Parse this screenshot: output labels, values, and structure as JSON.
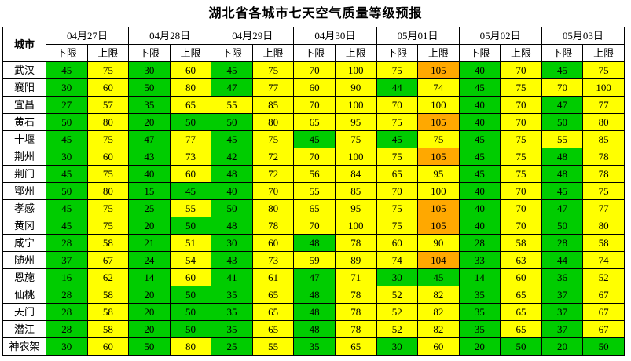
{
  "title": "湖北省各城市七天空气质量等级预报",
  "table": {
    "city_header": "城市",
    "dates": [
      "04月27日",
      "04月28日",
      "04月29日",
      "04月30日",
      "05月01日",
      "05月02日",
      "05月03日"
    ],
    "limit_labels": {
      "lower": "下限",
      "upper": "上限"
    },
    "colors": {
      "green": "#00cc00",
      "yellow": "#ffff00",
      "orange": "#ffa800"
    },
    "rows": [
      {
        "city": "武汉",
        "cells": [
          [
            45,
            "g"
          ],
          [
            75,
            "y"
          ],
          [
            30,
            "g"
          ],
          [
            60,
            "y"
          ],
          [
            45,
            "g"
          ],
          [
            75,
            "y"
          ],
          [
            70,
            "y"
          ],
          [
            100,
            "y"
          ],
          [
            75,
            "y"
          ],
          [
            105,
            "o"
          ],
          [
            40,
            "g"
          ],
          [
            70,
            "y"
          ],
          [
            45,
            "g"
          ],
          [
            75,
            "y"
          ]
        ]
      },
      {
        "city": "襄阳",
        "cells": [
          [
            30,
            "g"
          ],
          [
            60,
            "y"
          ],
          [
            50,
            "g"
          ],
          [
            80,
            "y"
          ],
          [
            47,
            "g"
          ],
          [
            77,
            "y"
          ],
          [
            60,
            "y"
          ],
          [
            90,
            "y"
          ],
          [
            44,
            "g"
          ],
          [
            74,
            "y"
          ],
          [
            45,
            "g"
          ],
          [
            75,
            "y"
          ],
          [
            70,
            "y"
          ],
          [
            100,
            "y"
          ]
        ]
      },
      {
        "city": "宜昌",
        "cells": [
          [
            27,
            "g"
          ],
          [
            57,
            "y"
          ],
          [
            35,
            "g"
          ],
          [
            65,
            "y"
          ],
          [
            55,
            "y"
          ],
          [
            85,
            "y"
          ],
          [
            70,
            "y"
          ],
          [
            100,
            "y"
          ],
          [
            70,
            "y"
          ],
          [
            100,
            "y"
          ],
          [
            40,
            "g"
          ],
          [
            70,
            "y"
          ],
          [
            47,
            "g"
          ],
          [
            77,
            "y"
          ]
        ]
      },
      {
        "city": "黄石",
        "cells": [
          [
            50,
            "g"
          ],
          [
            80,
            "y"
          ],
          [
            20,
            "g"
          ],
          [
            50,
            "g"
          ],
          [
            50,
            "g"
          ],
          [
            80,
            "y"
          ],
          [
            65,
            "y"
          ],
          [
            95,
            "y"
          ],
          [
            75,
            "y"
          ],
          [
            105,
            "o"
          ],
          [
            40,
            "g"
          ],
          [
            70,
            "y"
          ],
          [
            50,
            "g"
          ],
          [
            80,
            "y"
          ]
        ]
      },
      {
        "city": "十堰",
        "cells": [
          [
            45,
            "g"
          ],
          [
            75,
            "y"
          ],
          [
            47,
            "g"
          ],
          [
            77,
            "y"
          ],
          [
            45,
            "g"
          ],
          [
            75,
            "y"
          ],
          [
            45,
            "g"
          ],
          [
            75,
            "y"
          ],
          [
            45,
            "g"
          ],
          [
            75,
            "y"
          ],
          [
            45,
            "g"
          ],
          [
            75,
            "y"
          ],
          [
            55,
            "y"
          ],
          [
            85,
            "y"
          ]
        ]
      },
      {
        "city": "荆州",
        "cells": [
          [
            30,
            "g"
          ],
          [
            60,
            "y"
          ],
          [
            43,
            "g"
          ],
          [
            73,
            "y"
          ],
          [
            42,
            "g"
          ],
          [
            72,
            "y"
          ],
          [
            70,
            "y"
          ],
          [
            100,
            "y"
          ],
          [
            75,
            "y"
          ],
          [
            105,
            "o"
          ],
          [
            45,
            "g"
          ],
          [
            75,
            "y"
          ],
          [
            48,
            "g"
          ],
          [
            78,
            "y"
          ]
        ]
      },
      {
        "city": "荆门",
        "cells": [
          [
            45,
            "g"
          ],
          [
            75,
            "y"
          ],
          [
            40,
            "g"
          ],
          [
            60,
            "y"
          ],
          [
            48,
            "g"
          ],
          [
            72,
            "y"
          ],
          [
            56,
            "y"
          ],
          [
            84,
            "y"
          ],
          [
            65,
            "y"
          ],
          [
            95,
            "y"
          ],
          [
            45,
            "g"
          ],
          [
            75,
            "y"
          ],
          [
            48,
            "g"
          ],
          [
            78,
            "y"
          ]
        ]
      },
      {
        "city": "鄂州",
        "cells": [
          [
            50,
            "g"
          ],
          [
            80,
            "y"
          ],
          [
            15,
            "g"
          ],
          [
            45,
            "g"
          ],
          [
            40,
            "g"
          ],
          [
            70,
            "y"
          ],
          [
            55,
            "y"
          ],
          [
            85,
            "y"
          ],
          [
            70,
            "y"
          ],
          [
            100,
            "y"
          ],
          [
            40,
            "g"
          ],
          [
            70,
            "y"
          ],
          [
            45,
            "g"
          ],
          [
            75,
            "y"
          ]
        ]
      },
      {
        "city": "孝感",
        "cells": [
          [
            45,
            "g"
          ],
          [
            75,
            "y"
          ],
          [
            25,
            "g"
          ],
          [
            55,
            "y"
          ],
          [
            50,
            "g"
          ],
          [
            80,
            "y"
          ],
          [
            65,
            "y"
          ],
          [
            95,
            "y"
          ],
          [
            75,
            "y"
          ],
          [
            105,
            "o"
          ],
          [
            40,
            "g"
          ],
          [
            70,
            "y"
          ],
          [
            47,
            "g"
          ],
          [
            77,
            "y"
          ]
        ]
      },
      {
        "city": "黄冈",
        "cells": [
          [
            45,
            "g"
          ],
          [
            75,
            "y"
          ],
          [
            20,
            "g"
          ],
          [
            50,
            "g"
          ],
          [
            48,
            "g"
          ],
          [
            78,
            "y"
          ],
          [
            70,
            "y"
          ],
          [
            100,
            "y"
          ],
          [
            75,
            "y"
          ],
          [
            105,
            "o"
          ],
          [
            40,
            "g"
          ],
          [
            70,
            "y"
          ],
          [
            50,
            "g"
          ],
          [
            80,
            "y"
          ]
        ]
      },
      {
        "city": "咸宁",
        "cells": [
          [
            28,
            "g"
          ],
          [
            58,
            "y"
          ],
          [
            21,
            "g"
          ],
          [
            51,
            "y"
          ],
          [
            30,
            "g"
          ],
          [
            60,
            "y"
          ],
          [
            48,
            "g"
          ],
          [
            78,
            "y"
          ],
          [
            60,
            "y"
          ],
          [
            90,
            "y"
          ],
          [
            28,
            "g"
          ],
          [
            58,
            "y"
          ],
          [
            28,
            "g"
          ],
          [
            58,
            "y"
          ]
        ]
      },
      {
        "city": "随州",
        "cells": [
          [
            37,
            "g"
          ],
          [
            67,
            "y"
          ],
          [
            24,
            "g"
          ],
          [
            54,
            "y"
          ],
          [
            43,
            "g"
          ],
          [
            73,
            "y"
          ],
          [
            59,
            "y"
          ],
          [
            89,
            "y"
          ],
          [
            74,
            "y"
          ],
          [
            104,
            "o"
          ],
          [
            33,
            "g"
          ],
          [
            63,
            "y"
          ],
          [
            44,
            "g"
          ],
          [
            74,
            "y"
          ]
        ]
      },
      {
        "city": "恩施",
        "cells": [
          [
            16,
            "g"
          ],
          [
            62,
            "y"
          ],
          [
            14,
            "g"
          ],
          [
            60,
            "y"
          ],
          [
            41,
            "g"
          ],
          [
            61,
            "y"
          ],
          [
            47,
            "g"
          ],
          [
            71,
            "y"
          ],
          [
            30,
            "g"
          ],
          [
            45,
            "g"
          ],
          [
            14,
            "g"
          ],
          [
            60,
            "y"
          ],
          [
            36,
            "g"
          ],
          [
            52,
            "y"
          ]
        ]
      },
      {
        "city": "仙桃",
        "cells": [
          [
            28,
            "g"
          ],
          [
            58,
            "y"
          ],
          [
            20,
            "g"
          ],
          [
            50,
            "g"
          ],
          [
            35,
            "g"
          ],
          [
            65,
            "y"
          ],
          [
            48,
            "g"
          ],
          [
            78,
            "y"
          ],
          [
            52,
            "y"
          ],
          [
            82,
            "y"
          ],
          [
            35,
            "g"
          ],
          [
            65,
            "y"
          ],
          [
            37,
            "g"
          ],
          [
            67,
            "y"
          ]
        ]
      },
      {
        "city": "天门",
        "cells": [
          [
            28,
            "g"
          ],
          [
            58,
            "y"
          ],
          [
            20,
            "g"
          ],
          [
            50,
            "g"
          ],
          [
            35,
            "g"
          ],
          [
            65,
            "y"
          ],
          [
            48,
            "g"
          ],
          [
            78,
            "y"
          ],
          [
            52,
            "y"
          ],
          [
            82,
            "y"
          ],
          [
            35,
            "g"
          ],
          [
            65,
            "y"
          ],
          [
            37,
            "g"
          ],
          [
            67,
            "y"
          ]
        ]
      },
      {
        "city": "潜江",
        "cells": [
          [
            28,
            "g"
          ],
          [
            58,
            "y"
          ],
          [
            20,
            "g"
          ],
          [
            50,
            "g"
          ],
          [
            35,
            "g"
          ],
          [
            65,
            "y"
          ],
          [
            48,
            "g"
          ],
          [
            78,
            "y"
          ],
          [
            52,
            "y"
          ],
          [
            82,
            "y"
          ],
          [
            35,
            "g"
          ],
          [
            65,
            "y"
          ],
          [
            37,
            "g"
          ],
          [
            67,
            "y"
          ]
        ]
      },
      {
        "city": "神农架",
        "cells": [
          [
            30,
            "g"
          ],
          [
            60,
            "y"
          ],
          [
            50,
            "g"
          ],
          [
            80,
            "y"
          ],
          [
            25,
            "g"
          ],
          [
            55,
            "y"
          ],
          [
            35,
            "g"
          ],
          [
            65,
            "y"
          ],
          [
            30,
            "g"
          ],
          [
            60,
            "y"
          ],
          [
            20,
            "g"
          ],
          [
            50,
            "g"
          ],
          [
            20,
            "g"
          ],
          [
            50,
            "g"
          ]
        ]
      }
    ]
  }
}
